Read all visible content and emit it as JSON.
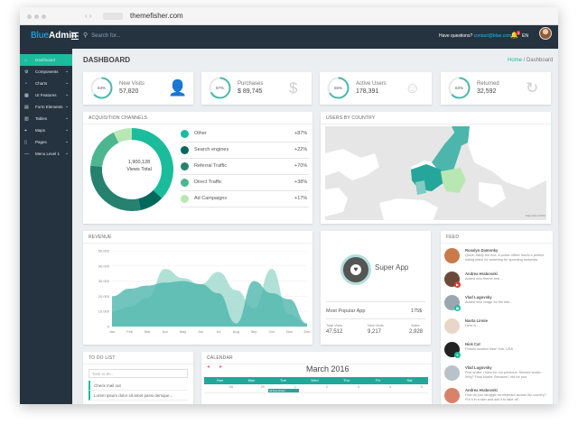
{
  "browser": {
    "site": "themefisher.com",
    "arrows": "‹ ›"
  },
  "topbar": {
    "brand_blue": "Blue",
    "brand_white": "Admin",
    "search_placeholder": "Search for...",
    "questions_label": "Have questions?",
    "contact_email": "contact@blue.com",
    "notif_count": "3",
    "flag_label": "EN"
  },
  "sidebar": {
    "items": [
      {
        "label": "Dashboard",
        "icon": "home-icon"
      },
      {
        "label": "Components",
        "icon": "gear-icon"
      },
      {
        "label": "Charts",
        "icon": "chart-icon"
      },
      {
        "label": "UI Features",
        "icon": "grid-icon"
      },
      {
        "label": "Form Elements",
        "icon": "form-icon"
      },
      {
        "label": "Tables",
        "icon": "table-icon"
      },
      {
        "label": "Maps",
        "icon": "map-icon"
      },
      {
        "label": "Pages",
        "icon": "page-icon"
      },
      {
        "label": "Menu Level 1",
        "icon": "menu-icon"
      }
    ]
  },
  "page": {
    "title": "DASHBOARD",
    "breadcrumb_home": "Home",
    "breadcrumb_sep": " / ",
    "breadcrumb_current": "Dashboard"
  },
  "stats": [
    {
      "label": "New Visits",
      "value": "57,820",
      "percent": "63%",
      "fraction": 0.63,
      "icon": "user-icon",
      "glyph": "👤"
    },
    {
      "label": "Purchases",
      "value": "$ 89,745",
      "percent": "67%",
      "fraction": 0.67,
      "icon": "dollar-icon",
      "glyph": "$"
    },
    {
      "label": "Active Users",
      "value": "178,391",
      "percent": "66%",
      "fraction": 0.66,
      "icon": "smiley-icon",
      "glyph": "☺"
    },
    {
      "label": "Returned",
      "value": "32,592",
      "percent": "63%",
      "fraction": 0.63,
      "icon": "refresh-icon",
      "glyph": "↻"
    }
  ],
  "acquisition": {
    "title": "ACQUISITION CHANNELS",
    "center_value": "1,900,128",
    "center_label": "Views Total",
    "items": [
      {
        "name": "Other",
        "percent": "+87%",
        "color": "#1abc9c"
      },
      {
        "name": "Search engines",
        "percent": "+22%",
        "color": "#00695c"
      },
      {
        "name": "Referral Traffic",
        "percent": "+70%",
        "color": "#26816f"
      },
      {
        "name": "Direct Traffic",
        "percent": "+38%",
        "color": "#4db690"
      },
      {
        "name": "Ad Campaigns",
        "percent": "+17%",
        "color": "#b9e7b4"
      }
    ]
  },
  "users_by_country": {
    "title": "USERS BY COUNTRY",
    "attribution": "Map data ©2016"
  },
  "revenue": {
    "title": "REVENUE",
    "chart_data": {
      "type": "area",
      "categories": [
        "Jan",
        "Feb",
        "Mar",
        "Apr",
        "May",
        "Jun",
        "Jul",
        "Aug",
        "Sep",
        "Oct",
        "Nov",
        "Dec"
      ],
      "ylim": [
        0,
        50000
      ],
      "y_ticks": [
        "50,000",
        "40,000",
        "30,000",
        "20,000",
        "10,000",
        "0"
      ],
      "series": [
        {
          "values": [
            10000,
            13000,
            19000,
            38000,
            32000,
            28000,
            36000,
            24000,
            12000,
            38000,
            8000,
            2000
          ],
          "color": "#9ed8cc"
        },
        {
          "values": [
            20000,
            25000,
            27000,
            29000,
            30000,
            28000,
            22000,
            2000,
            30000,
            22000,
            18000,
            2000
          ],
          "color": "#4db6ac"
        }
      ]
    }
  },
  "app": {
    "name": "Super App",
    "popular_label": "Most Popular App",
    "price": "175$",
    "stats": [
      {
        "label": "Total Visits",
        "value": "47,512"
      },
      {
        "label": "New Visits",
        "value": "9,217"
      },
      {
        "label": "Sales",
        "value": "2,928"
      }
    ]
  },
  "feed": {
    "title": "FEED",
    "items": [
      {
        "name": "Rosalyn Damonky",
        "text": "Quick, ridely the box. A police officer found a perfect hiding place for watching for speeding motorists.",
        "color": "#c97a4a"
      },
      {
        "name": "Andrea Hrabovski",
        "text": "Added new theme and ...",
        "color": "#6b4a3a",
        "badge": "#e53935"
      },
      {
        "name": "Vlad Lugovsky",
        "text": "Added new image for the title...",
        "color": "#9aa7b0",
        "badge": "#1abc9c"
      },
      {
        "name": "Nasta Linnie",
        "text": "Here is ...",
        "color": "#e8d7c8"
      },
      {
        "name": "Nick Cat",
        "text": "Posted location New York, USA",
        "color": "#222222",
        "badge": "#1abc9c"
      },
      {
        "name": "Vlad Lugovsky",
        "text": "First snake I have for our precious. Second snake: Why? Final snake: Because I did for you.",
        "color": "#b8c2c8"
      },
      {
        "name": "Andrea Hrabovski",
        "text": "How do you struggle an elephant across the country? Put it in a skin and ask it to take off.",
        "color": "#d9826a"
      }
    ]
  },
  "todo": {
    "title": "TO DO LIST",
    "input_placeholder": "Task to do..",
    "items": [
      "Check mail out",
      "Lorem ipsum dolor sit amet passi demque..."
    ]
  },
  "calendar": {
    "title": "CALENDAR",
    "month": "March 2016",
    "prev": "◂",
    "next": "▸",
    "days": [
      "Sun",
      "Mon",
      "Tue",
      "Wed",
      "Thu",
      "Fri",
      "Sat"
    ],
    "dates": [
      "28",
      "29",
      "1",
      "2",
      "3",
      "4",
      "5"
    ],
    "event": "All Day Event"
  }
}
